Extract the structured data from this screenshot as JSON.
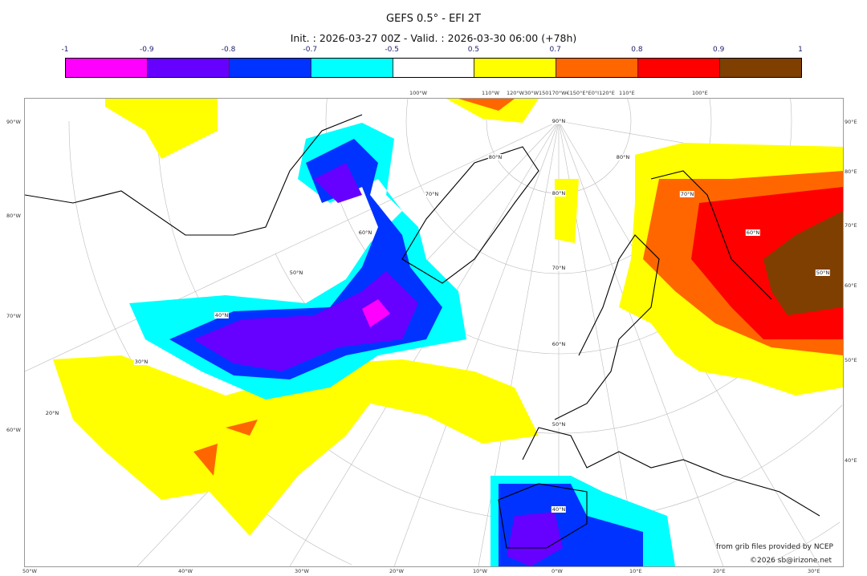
{
  "title": "GEFS 0.5° - EFI 2T",
  "subtitle": "Init. : 2026-03-27 00Z - Valid. : 2026-03-30 06:00 (+78h)",
  "colorbar": {
    "ticks": [
      "-1",
      "-0.9",
      "-0.8",
      "-0.7",
      "-0.5",
      "0.5",
      "0.7",
      "0.8",
      "0.9",
      "1"
    ],
    "colors": [
      "#ff00ff",
      "#6600ff",
      "#0033ff",
      "#00ffff",
      "#ffffff",
      "#ffff00",
      "#ff6600",
      "#ff0000",
      "#7f3f00"
    ]
  },
  "map": {
    "left_labels": [
      "90°W",
      "80°W",
      "70°W",
      "60°W"
    ],
    "right_labels": [
      "90°E",
      "80°E",
      "70°E",
      "60°E",
      "50°E",
      "40°E"
    ],
    "bottom_labels": [
      "50°W",
      "40°W",
      "30°W",
      "20°W",
      "10°W",
      "0°W",
      "10°E",
      "20°E",
      "30°E"
    ],
    "top_labels": [
      "100°W",
      "110°W",
      "120°W30°W150170°W€150°E°E0°I120°E",
      "110°E",
      "100°E"
    ],
    "grid_labels": [
      "90°N",
      "80°N",
      "70°N",
      "60°N",
      "50°N",
      "40°N",
      "30°N",
      "20°N",
      "80°N",
      "70°N",
      "60°N",
      "50°N",
      "40°N",
      "80°N",
      "70°N",
      "60°N",
      "50°N"
    ]
  },
  "credits": {
    "source": "from grib files provided by NCEP",
    "copyright": "©2026 sb@irizone.net"
  }
}
